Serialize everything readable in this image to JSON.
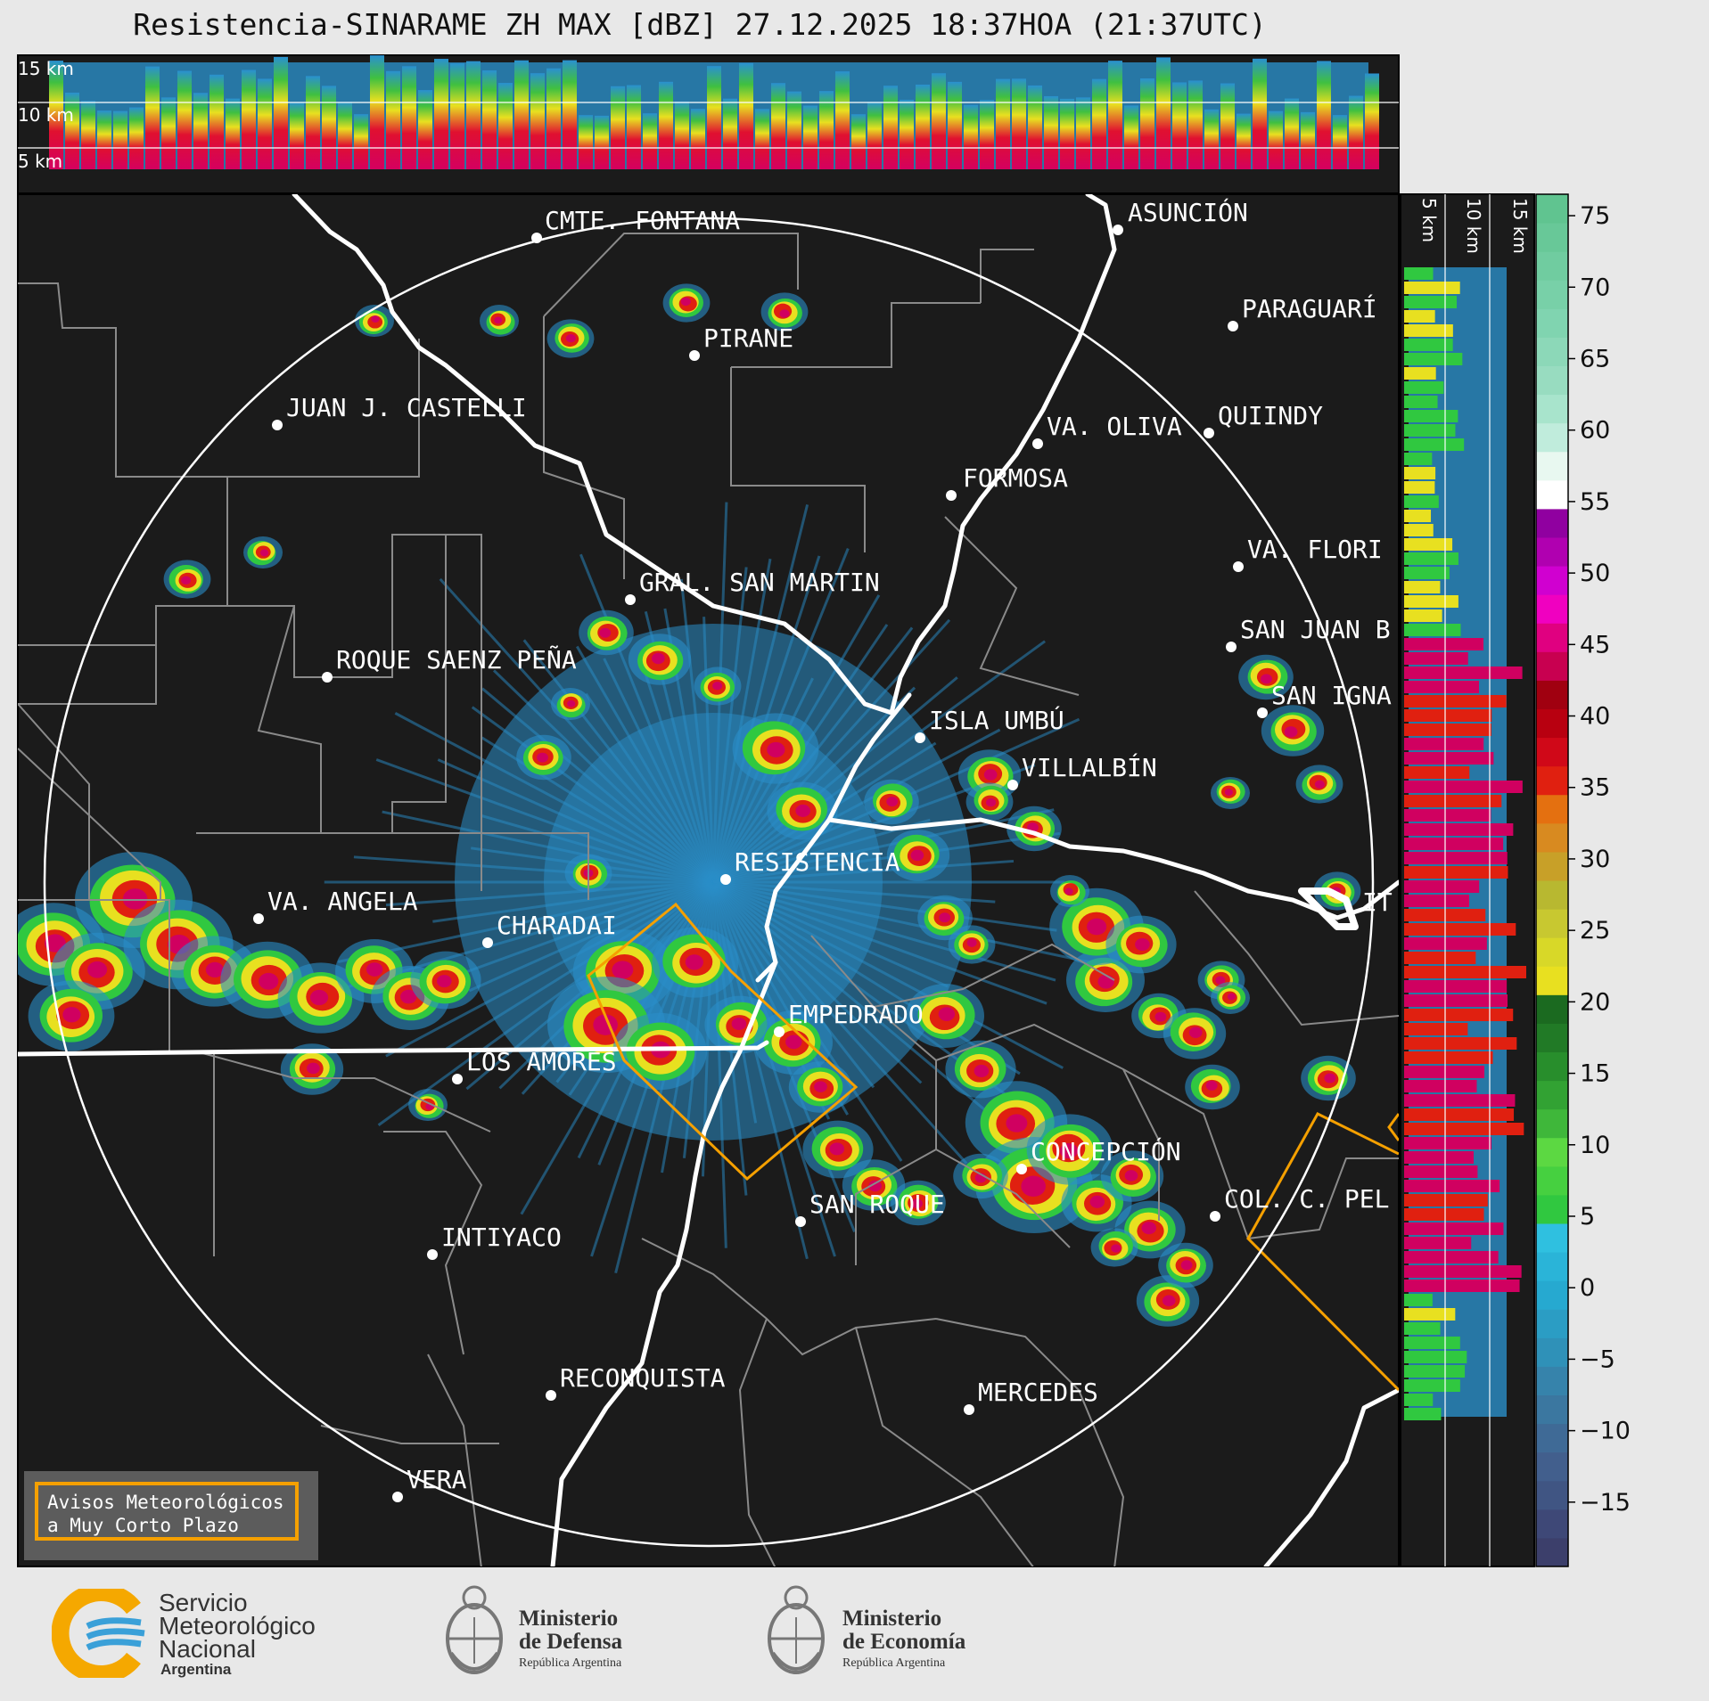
{
  "title": "Resistencia-SINARAME ZH MAX [dBZ] 27.12.2025 18:37HOA (21:37UTC)",
  "top_panel": {
    "km_labels": [
      "15 km",
      "10 km",
      "5 km"
    ]
  },
  "side_panel": {
    "km_labels": [
      "5 km",
      "10 km",
      "15 km"
    ]
  },
  "colorbar": {
    "ticks": [
      "75",
      "70",
      "65",
      "60",
      "55",
      "50",
      "45",
      "40",
      "35",
      "30",
      "25",
      "20",
      "15",
      "10",
      "5",
      "0",
      "−5",
      "−10",
      "−15"
    ],
    "range": [
      -19.5,
      76.5
    ]
  },
  "cities": [
    {
      "name": "ASUNCIÓN"
    },
    {
      "name": "CMTE. FONTANA"
    },
    {
      "name": "PARAGUARÍ"
    },
    {
      "name": "PIRANE"
    },
    {
      "name": "JUAN J. CASTELLI"
    },
    {
      "name": "QUIINDY"
    },
    {
      "name": "VA. OLIVA"
    },
    {
      "name": "FORMOSA"
    },
    {
      "name": "VA. FLORI"
    },
    {
      "name": "GRAL. SAN MARTIN"
    },
    {
      "name": "SAN JUAN B"
    },
    {
      "name": "ROQUE SAENZ PEÑA"
    },
    {
      "name": "SAN IGNA"
    },
    {
      "name": "ISLA UMBÚ"
    },
    {
      "name": "VILLALBÍN"
    },
    {
      "name": "RESISTENCIA"
    },
    {
      "name": "IT"
    },
    {
      "name": "VA. ANGELA"
    },
    {
      "name": "CHARADAI"
    },
    {
      "name": "EMPEDRADO"
    },
    {
      "name": "LOS AMORES"
    },
    {
      "name": "CONCEPCIÓN"
    },
    {
      "name": "SAN ROQUE"
    },
    {
      "name": "COL. C. PEL"
    },
    {
      "name": "INTIYACO"
    },
    {
      "name": "RECONQUISTA"
    },
    {
      "name": "MERCEDES"
    },
    {
      "name": "VERA"
    }
  ],
  "warning_box": {
    "line1": "Avisos Meteorológicos",
    "line2": "a Muy Corto Plazo"
  },
  "logos": {
    "smn": {
      "line1": "Servicio",
      "line2": "Meteorológico",
      "line3": "Nacional",
      "line4": "Argentina"
    },
    "defensa": {
      "line1": "Ministerio",
      "line2": "de Defensa",
      "line3": "República Argentina"
    },
    "economia": {
      "line1": "Ministerio",
      "line2": "de Economía",
      "line3": "República Argentina"
    }
  },
  "colors": {
    "background": "#1b1b1b",
    "warning": "#f5a000",
    "frame": "#e8e8e8"
  }
}
